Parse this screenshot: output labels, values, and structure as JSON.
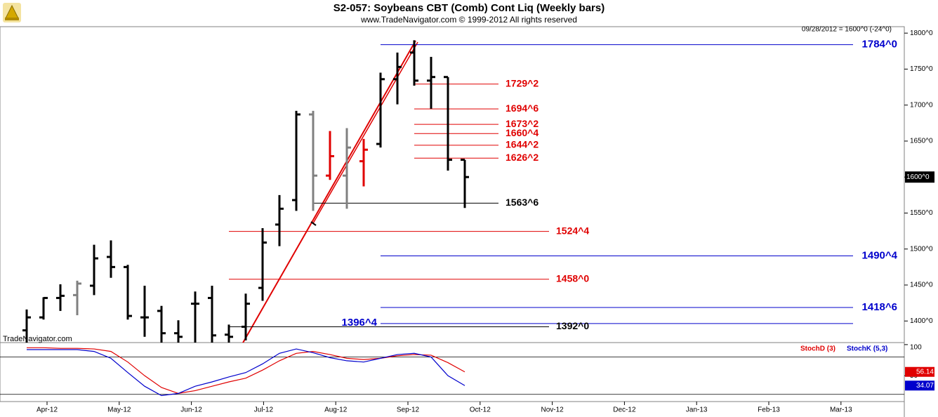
{
  "chart_data": [
    {
      "type": "ohlc",
      "title": "S2-057:  Soybeans CBT (Comb) Cont Liq  (Weekly bars)",
      "subtitle": "www.TradeNavigator.com © 1999-2012 All rights reserved",
      "header_note": "09/28/2012 = 1600^0 (-24^0)",
      "watermark": "TradeNavigator.com",
      "x_labels": [
        "Apr-12",
        "May-12",
        "Jun-12",
        "Jul-12",
        "Aug-12",
        "Sep-12",
        "Oct-12",
        "Nov-12",
        "Dec-12",
        "Jan-13",
        "Feb-13",
        "Mar-13"
      ],
      "categories": [
        null,
        null,
        null,
        null,
        null,
        null,
        null,
        null,
        null,
        null,
        null,
        null,
        null,
        null,
        null,
        null,
        null,
        null,
        null,
        null,
        null,
        null,
        null,
        null,
        null,
        null,
        null
      ],
      "open": [
        1387,
        1405,
        1432,
        1436,
        1449,
        1489,
        1475,
        1405,
        1414,
        1383,
        1424,
        1432,
        1381,
        1392,
        1446,
        1534,
        1568,
        1687,
        1602,
        1602,
        1622,
        1646,
        1736,
        1773,
        1734,
        1739,
        1624
      ],
      "high": [
        1416,
        1433,
        1451,
        1456,
        1506,
        1512,
        1478,
        1449,
        1421,
        1401,
        1441,
        1449,
        1395,
        1438,
        1529,
        1575,
        1692,
        1692,
        1664,
        1668,
        1653,
        1745,
        1773,
        1790,
        1767,
        1739,
        1624
      ],
      "low": [
        1360,
        1402,
        1414,
        1408,
        1436,
        1460,
        1402,
        1378,
        1370,
        1368,
        1368,
        1368,
        1368,
        1373,
        1428,
        1504,
        1553,
        1553,
        1596,
        1556,
        1587,
        1641,
        1701,
        1727,
        1695,
        1609,
        1557
      ],
      "close": [
        1405,
        1432,
        1435,
        1452,
        1487,
        1475,
        1407,
        1405,
        1383,
        1378,
        1424,
        1380,
        1378,
        1424,
        1509,
        1556,
        1687,
        1602,
        1629,
        1641,
        1638,
        1736,
        1753,
        1734,
        1739,
        1624,
        1600
      ],
      "colors": [
        "#000000",
        "#000000",
        "#000000",
        "#808080",
        "#000000",
        "#000000",
        "#000000",
        "#000000",
        "#000000",
        "#000000",
        "#000000",
        "#000000",
        "#000000",
        "#000000",
        "#000000",
        "#000000",
        "#000000",
        "#808080",
        "#e00000",
        "#808080",
        "#e00000",
        "#000000",
        "#000000",
        "#000000",
        "#000000",
        "#000000",
        "#000000"
      ],
      "ylim": [
        1370,
        1807
      ],
      "yticks": [
        {
          "value": 1400,
          "label": "1400^0"
        },
        {
          "value": 1450,
          "label": "1450^0"
        },
        {
          "value": 1500,
          "label": "1500^0"
        },
        {
          "value": 1550,
          "label": "1550^0"
        },
        {
          "value": 1600,
          "label": "1600^0"
        },
        {
          "value": 1650,
          "label": "1650^0"
        },
        {
          "value": 1700,
          "label": "1700^0"
        },
        {
          "value": 1750,
          "label": "1750^0"
        },
        {
          "value": 1800,
          "label": "1800^0"
        }
      ],
      "last_price": {
        "value": 1600,
        "label": "1600^0"
      },
      "levels": [
        {
          "value": 1784,
          "label": "1784^0",
          "color": "#0000cc"
        },
        {
          "value": 1729.25,
          "label": "1729^2",
          "color": "#e00000"
        },
        {
          "value": 1694.75,
          "label": "1694^6",
          "color": "#e00000"
        },
        {
          "value": 1673.25,
          "label": "1673^2",
          "color": "#e00000"
        },
        {
          "value": 1660.5,
          "label": "1660^4",
          "color": "#e00000"
        },
        {
          "value": 1644.25,
          "label": "1644^2",
          "color": "#e00000"
        },
        {
          "value": 1626.25,
          "label": "1626^2",
          "color": "#e00000"
        },
        {
          "value": 1563.75,
          "label": "1563^6",
          "color": "#000000"
        },
        {
          "value": 1524.5,
          "label": "1524^4",
          "color": "#e00000"
        },
        {
          "value": 1490.5,
          "label": "1490^4",
          "color": "#0000cc"
        },
        {
          "value": 1458,
          "label": "1458^0",
          "color": "#e00000"
        },
        {
          "value": 1418.75,
          "label": "1418^6",
          "color": "#0000cc"
        },
        {
          "value": 1396.5,
          "label": "1396^4",
          "color": "#0000cc"
        },
        {
          "value": 1392,
          "label": "1392^0",
          "color": "#000000"
        }
      ]
    },
    {
      "type": "line",
      "series": [
        {
          "name": "StochD (3)",
          "color": "#e00000",
          "values": [
            95,
            95,
            94,
            94,
            93,
            89,
            72,
            50,
            31,
            21.5,
            26,
            33,
            40,
            46,
            59,
            74,
            86,
            89,
            84,
            78,
            76,
            78,
            82,
            84,
            83,
            71,
            56.14
          ]
        },
        {
          "name": "StochK (5,3)",
          "color": "#0000cc",
          "values": [
            92,
            92,
            92,
            92,
            89,
            78,
            55,
            33,
            18,
            21.5,
            33,
            40,
            48,
            55,
            69,
            86,
            93,
            87,
            79,
            74,
            72,
            78,
            84,
            86,
            80,
            50,
            34.07
          ]
        }
      ],
      "ylim": [
        5,
        101
      ],
      "yticks": [
        50,
        100
      ],
      "bands": [
        20,
        80
      ]
    }
  ]
}
